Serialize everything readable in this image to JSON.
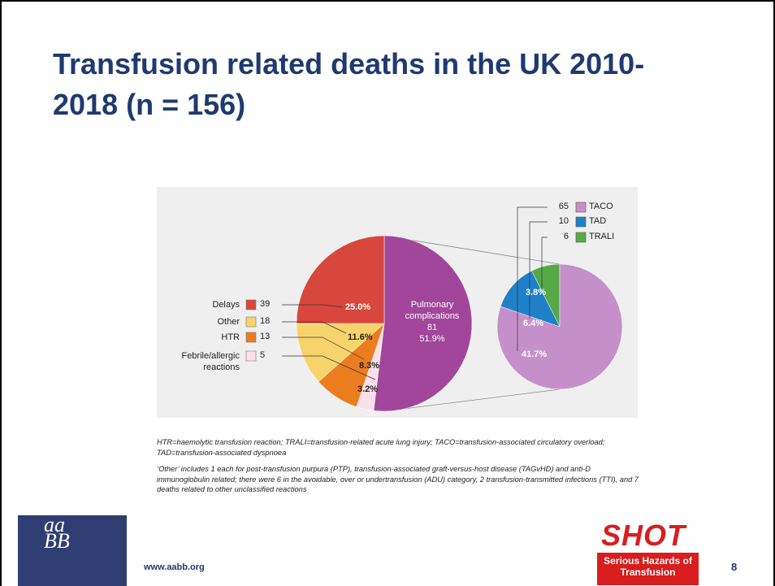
{
  "slide": {
    "title": "Transfusion related deaths in the UK 2010-2018 (n = 156)",
    "footnotes": [
      "HTR=haemolytic transfusion reaction; TRALI=transfusion-related acute lung injury; TACO=transfusion-associated circulatory overload; TAD=transfusion-associated dyspnoea",
      "‘Other’ includes 1 each for post-transfusion purpura (PTP), transfusion-associated graft-versus-host disease (TAGvHD) and anti-D immunoglobulin related; there were 6 in the avoidable, over or undertransfusion (ADU) category, 2 transfusion-transmitted infections (TTI), and 7 deaths related to other unclassified reactions"
    ],
    "url": "www.aabb.org",
    "page": "8",
    "left_logo": [
      "aa",
      "BB"
    ],
    "right_logo": {
      "name": "SHOT",
      "tagline": "Serious Hazards of Transfusion"
    }
  },
  "chart_data": {
    "type": "pie",
    "categories": [
      "Delays",
      "Other",
      "HTR",
      "Febrile/allergic reactions",
      "Pulmonary complications"
    ],
    "values": [
      39,
      18,
      13,
      5,
      81
    ],
    "percentages": [
      25,
      11.6,
      8.3,
      3.2,
      51.9
    ],
    "percentage_labels": [
      "25.0%",
      "11.6%",
      "8.3%",
      "3.2%",
      "51.9%"
    ],
    "colors": [
      "#d8473d",
      "#f7d46b",
      "#ec7d1f",
      "#f9e0ea",
      "#a1469b"
    ],
    "breakdown": {
      "type": "pie",
      "categories": [
        "TACO",
        "TAD",
        "TRALI"
      ],
      "values": [
        65,
        10,
        6
      ],
      "percentages": [
        41.7,
        6.4,
        3.8
      ],
      "percentage_labels": [
        "41.7%",
        "6.4%",
        "3.8%"
      ],
      "colors": [
        "#c590ca",
        "#1f80c8",
        "#56a947"
      ]
    }
  }
}
